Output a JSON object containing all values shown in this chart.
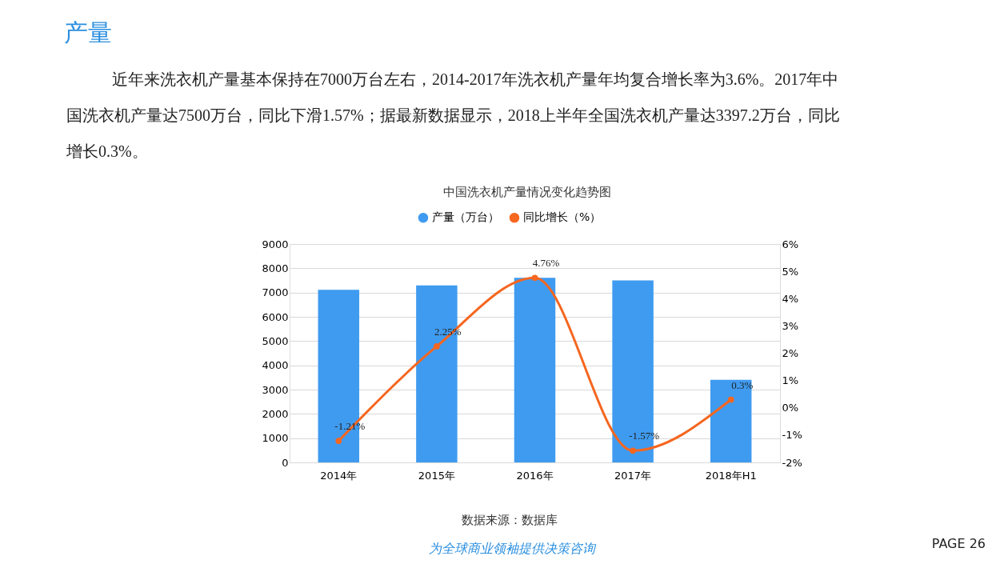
{
  "chart_data": {
    "type": "bar",
    "title": "中国洗衣机产量情况变化趋势图",
    "annotations": [
      "产量",
      "近年来洗衣机产量基本保持在7000万台左右，2014-2017年洗衣机产量年均复合增长率为3.6%。2017年中国洗衣机产量达7500万台，同比下滑1.57%；据最新数据显示，2018上半年全国洗衣机产量达3397.2万台，同比增长0.3%。",
      "数据来源：数据库",
      "为全球商业领袖提供决策咨询",
      "PAGE  26"
    ],
    "categories": [
      "2014年",
      "2015年",
      "2016年",
      "2017年",
      "2018年H1"
    ],
    "series": [
      {
        "name": "产量（万台）",
        "color": "#3f9bf0",
        "values": [
          7110,
          7290,
          7610,
          7500,
          3400
        ]
      },
      {
        "name": "同比增长（%）",
        "type": "line",
        "axis": "y2",
        "color": "#f5661f",
        "values": [
          -1.21,
          2.25,
          4.76,
          -1.57,
          0.3
        ],
        "value_labels": [
          "-1.21%",
          "2.25%",
          "4.76%",
          "-1.57%",
          "0.3%"
        ]
      }
    ],
    "ylim": [
      0,
      9000
    ],
    "yticks": [
      0,
      1000,
      2000,
      3000,
      4000,
      5000,
      6000,
      7000,
      8000,
      9000
    ],
    "y2lim": [
      -2,
      6
    ],
    "y2ticks": [
      {
        "value": -2,
        "label": "-2%"
      },
      {
        "value": -1,
        "label": "-1%"
      },
      {
        "value": 0,
        "label": "0%"
      },
      {
        "value": 1,
        "label": "1%"
      },
      {
        "value": 2,
        "label": "2%"
      },
      {
        "value": 3,
        "label": "3%"
      },
      {
        "value": 4,
        "label": "4%"
      },
      {
        "value": 5,
        "label": "5%"
      },
      {
        "value": 6,
        "label": "6%"
      }
    ],
    "grid": "y",
    "legend": "top",
    "marker": "circle",
    "line_style": "solid"
  }
}
